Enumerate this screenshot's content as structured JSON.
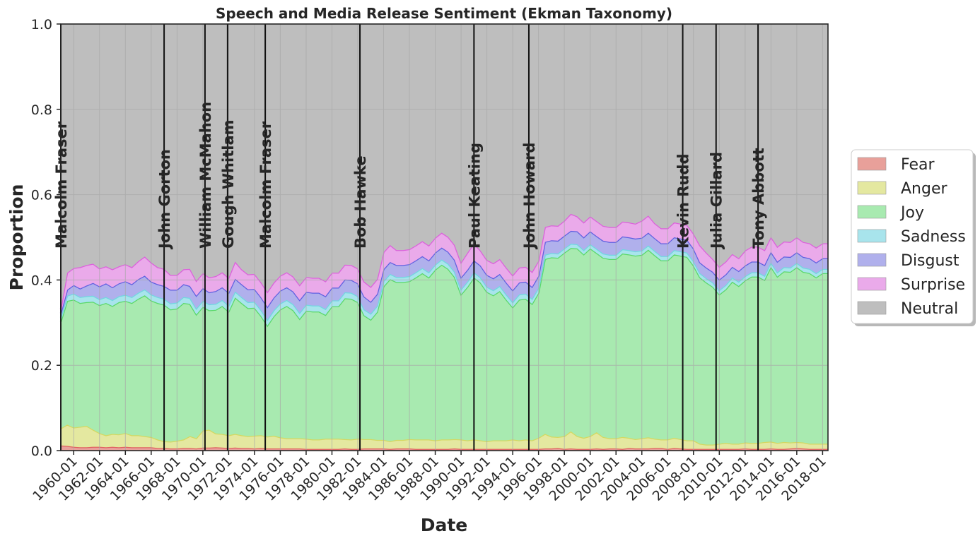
{
  "chart_data": {
    "type": "area",
    "title": "Speech and Media Release Sentiment (Ekman Taxonomy)",
    "xlabel": "Date",
    "ylabel": "Proportion",
    "xlim": [
      "1959-01",
      "2018-06"
    ],
    "ylim": [
      0,
      1
    ],
    "yticks": [
      "0.0",
      "0.2",
      "0.4",
      "0.6",
      "0.8",
      "1.0"
    ],
    "xticks": [
      "1960-01",
      "1962-01",
      "1964-01",
      "1966-01",
      "1968-01",
      "1970-01",
      "1972-01",
      "1974-01",
      "1976-01",
      "1978-01",
      "1980-01",
      "1982-01",
      "1984-01",
      "1986-01",
      "1988-01",
      "1990-01",
      "1992-01",
      "1994-01",
      "1996-01",
      "1998-01",
      "2000-01",
      "2002-01",
      "2004-01",
      "2006-01",
      "2008-01",
      "2010-01",
      "2012-01",
      "2014-01",
      "2016-01",
      "2018-01"
    ],
    "grid": true,
    "legend_position": "outside-right",
    "x": [
      "1959-01",
      "1959-07",
      "1960-01",
      "1960-07",
      "1961-01",
      "1961-07",
      "1962-01",
      "1962-07",
      "1963-01",
      "1963-07",
      "1964-01",
      "1964-07",
      "1965-01",
      "1965-07",
      "1966-01",
      "1966-07",
      "1967-01",
      "1967-07",
      "1968-01",
      "1968-07",
      "1969-01",
      "1969-07",
      "1970-01",
      "1970-07",
      "1971-01",
      "1971-07",
      "1972-01",
      "1972-07",
      "1973-01",
      "1973-07",
      "1974-01",
      "1974-07",
      "1975-01",
      "1975-07",
      "1976-01",
      "1976-07",
      "1977-01",
      "1977-07",
      "1978-01",
      "1978-07",
      "1979-01",
      "1979-07",
      "1980-01",
      "1980-07",
      "1981-01",
      "1981-07",
      "1982-01",
      "1982-07",
      "1983-01",
      "1983-07",
      "1984-01",
      "1984-07",
      "1985-01",
      "1985-07",
      "1986-01",
      "1986-07",
      "1987-01",
      "1987-07",
      "1988-01",
      "1988-07",
      "1989-01",
      "1989-07",
      "1990-01",
      "1990-07",
      "1991-01",
      "1991-07",
      "1992-01",
      "1992-07",
      "1993-01",
      "1993-07",
      "1994-01",
      "1994-07",
      "1995-01",
      "1995-07",
      "1996-01",
      "1996-07",
      "1997-01",
      "1997-07",
      "1998-01",
      "1998-07",
      "1999-01",
      "1999-07",
      "2000-01",
      "2000-07",
      "2001-01",
      "2001-07",
      "2002-01",
      "2002-07",
      "2003-01",
      "2003-07",
      "2004-01",
      "2004-07",
      "2005-01",
      "2005-07",
      "2006-01",
      "2006-07",
      "2007-01",
      "2007-07",
      "2008-01",
      "2008-07",
      "2009-01",
      "2009-07",
      "2010-01",
      "2010-07",
      "2011-01",
      "2011-07",
      "2012-01",
      "2012-07",
      "2013-01",
      "2013-07",
      "2014-01",
      "2014-07",
      "2015-01",
      "2015-07",
      "2016-01",
      "2016-07",
      "2017-01",
      "2017-07",
      "2018-01",
      "2018-06"
    ],
    "series": [
      {
        "name": "Fear",
        "color": "#e8a09a",
        "line": "#e06060",
        "values": [
          0.012,
          0.011,
          0.009,
          0.008,
          0.008,
          0.009,
          0.009,
          0.008,
          0.009,
          0.008,
          0.009,
          0.008,
          0.008,
          0.008,
          0.008,
          0.006,
          0.006,
          0.005,
          0.005,
          0.006,
          0.006,
          0.005,
          0.007,
          0.007,
          0.008,
          0.007,
          0.006,
          0.007,
          0.006,
          0.006,
          0.005,
          0.006,
          0.005,
          0.005,
          0.005,
          0.005,
          0.005,
          0.005,
          0.004,
          0.004,
          0.004,
          0.004,
          0.004,
          0.004,
          0.005,
          0.004,
          0.004,
          0.005,
          0.005,
          0.005,
          0.005,
          0.004,
          0.005,
          0.005,
          0.005,
          0.004,
          0.004,
          0.004,
          0.004,
          0.004,
          0.004,
          0.005,
          0.004,
          0.004,
          0.004,
          0.004,
          0.004,
          0.004,
          0.004,
          0.004,
          0.004,
          0.004,
          0.004,
          0.004,
          0.004,
          0.005,
          0.005,
          0.006,
          0.004,
          0.005,
          0.004,
          0.004,
          0.004,
          0.005,
          0.004,
          0.005,
          0.005,
          0.004,
          0.006,
          0.005,
          0.005,
          0.005,
          0.006,
          0.006,
          0.004,
          0.006,
          0.005,
          0.004,
          0.004,
          0.004,
          0.004,
          0.004,
          0.004,
          0.004,
          0.004,
          0.004,
          0.005,
          0.004,
          0.004,
          0.004,
          0.005,
          0.004,
          0.004,
          0.005,
          0.006,
          0.005,
          0.004,
          0.004,
          0.004,
          0.004
        ]
      },
      {
        "name": "Anger",
        "color": "#e4e8a0",
        "line": "#d4d860",
        "values": [
          0.04,
          0.05,
          0.045,
          0.048,
          0.05,
          0.04,
          0.032,
          0.028,
          0.03,
          0.03,
          0.032,
          0.028,
          0.028,
          0.026,
          0.024,
          0.02,
          0.016,
          0.016,
          0.018,
          0.02,
          0.028,
          0.024,
          0.04,
          0.042,
          0.032,
          0.032,
          0.03,
          0.032,
          0.03,
          0.028,
          0.03,
          0.03,
          0.028,
          0.03,
          0.026,
          0.024,
          0.024,
          0.024,
          0.024,
          0.022,
          0.022,
          0.024,
          0.024,
          0.024,
          0.022,
          0.022,
          0.024,
          0.022,
          0.022,
          0.02,
          0.02,
          0.018,
          0.02,
          0.02,
          0.022,
          0.022,
          0.022,
          0.022,
          0.02,
          0.022,
          0.022,
          0.022,
          0.022,
          0.02,
          0.022,
          0.02,
          0.018,
          0.02,
          0.02,
          0.02,
          0.022,
          0.02,
          0.022,
          0.02,
          0.026,
          0.034,
          0.028,
          0.026,
          0.03,
          0.04,
          0.03,
          0.026,
          0.03,
          0.038,
          0.028,
          0.024,
          0.024,
          0.028,
          0.024,
          0.022,
          0.024,
          0.026,
          0.022,
          0.02,
          0.022,
          0.024,
          0.022,
          0.02,
          0.02,
          0.012,
          0.01,
          0.01,
          0.012,
          0.014,
          0.012,
          0.012,
          0.014,
          0.014,
          0.014,
          0.016,
          0.016,
          0.014,
          0.016,
          0.014,
          0.014,
          0.014,
          0.012,
          0.012,
          0.012,
          0.012
        ]
      },
      {
        "name": "Joy",
        "color": "#a8eab0",
        "line": "#5ad86a",
        "values": [
          0.25,
          0.29,
          0.3,
          0.29,
          0.29,
          0.3,
          0.3,
          0.31,
          0.3,
          0.31,
          0.31,
          0.31,
          0.32,
          0.33,
          0.32,
          0.32,
          0.32,
          0.31,
          0.31,
          0.32,
          0.31,
          0.29,
          0.29,
          0.28,
          0.29,
          0.3,
          0.29,
          0.32,
          0.31,
          0.3,
          0.3,
          0.28,
          0.26,
          0.28,
          0.3,
          0.31,
          0.3,
          0.28,
          0.3,
          0.3,
          0.3,
          0.29,
          0.31,
          0.31,
          0.33,
          0.33,
          0.32,
          0.29,
          0.28,
          0.3,
          0.36,
          0.38,
          0.37,
          0.37,
          0.37,
          0.38,
          0.39,
          0.38,
          0.4,
          0.41,
          0.4,
          0.38,
          0.34,
          0.36,
          0.38,
          0.37,
          0.35,
          0.34,
          0.35,
          0.33,
          0.31,
          0.33,
          0.33,
          0.32,
          0.34,
          0.41,
          0.42,
          0.42,
          0.43,
          0.43,
          0.44,
          0.43,
          0.44,
          0.42,
          0.42,
          0.42,
          0.42,
          0.43,
          0.43,
          0.43,
          0.43,
          0.44,
          0.43,
          0.42,
          0.42,
          0.43,
          0.43,
          0.43,
          0.41,
          0.39,
          0.38,
          0.37,
          0.35,
          0.36,
          0.38,
          0.37,
          0.38,
          0.39,
          0.39,
          0.38,
          0.41,
          0.39,
          0.4,
          0.4,
          0.41,
          0.4,
          0.4,
          0.39,
          0.4,
          0.4
        ]
      },
      {
        "name": "Sadness",
        "color": "#a8e4ec",
        "line": "#70d8e0",
        "values": [
          0.01,
          0.012,
          0.014,
          0.014,
          0.014,
          0.014,
          0.014,
          0.014,
          0.014,
          0.014,
          0.014,
          0.014,
          0.014,
          0.014,
          0.014,
          0.014,
          0.014,
          0.014,
          0.014,
          0.014,
          0.014,
          0.014,
          0.014,
          0.014,
          0.014,
          0.014,
          0.014,
          0.014,
          0.014,
          0.014,
          0.014,
          0.014,
          0.014,
          0.014,
          0.014,
          0.014,
          0.014,
          0.014,
          0.014,
          0.014,
          0.014,
          0.014,
          0.014,
          0.014,
          0.014,
          0.014,
          0.014,
          0.014,
          0.014,
          0.014,
          0.012,
          0.012,
          0.012,
          0.012,
          0.012,
          0.012,
          0.012,
          0.012,
          0.012,
          0.012,
          0.012,
          0.012,
          0.012,
          0.012,
          0.012,
          0.012,
          0.012,
          0.012,
          0.012,
          0.012,
          0.012,
          0.012,
          0.012,
          0.012,
          0.012,
          0.01,
          0.01,
          0.01,
          0.01,
          0.01,
          0.01,
          0.01,
          0.01,
          0.01,
          0.01,
          0.01,
          0.01,
          0.01,
          0.01,
          0.01,
          0.01,
          0.01,
          0.01,
          0.01,
          0.01,
          0.01,
          0.01,
          0.01,
          0.01,
          0.01,
          0.01,
          0.01,
          0.01,
          0.01,
          0.01,
          0.01,
          0.01,
          0.01,
          0.01,
          0.01,
          0.01,
          0.01,
          0.01,
          0.01,
          0.01,
          0.01,
          0.01,
          0.01,
          0.01,
          0.01
        ]
      },
      {
        "name": "Disgust",
        "color": "#b0b0ec",
        "line": "#6060e0",
        "values": [
          0.01,
          0.014,
          0.02,
          0.02,
          0.025,
          0.03,
          0.03,
          0.032,
          0.03,
          0.03,
          0.032,
          0.03,
          0.032,
          0.032,
          0.03,
          0.03,
          0.03,
          0.032,
          0.03,
          0.03,
          0.028,
          0.03,
          0.03,
          0.028,
          0.03,
          0.03,
          0.03,
          0.03,
          0.03,
          0.03,
          0.03,
          0.03,
          0.03,
          0.03,
          0.03,
          0.03,
          0.03,
          0.03,
          0.03,
          0.03,
          0.03,
          0.03,
          0.03,
          0.03,
          0.03,
          0.03,
          0.03,
          0.03,
          0.028,
          0.028,
          0.028,
          0.028,
          0.028,
          0.028,
          0.028,
          0.028,
          0.028,
          0.028,
          0.028,
          0.028,
          0.028,
          0.028,
          0.028,
          0.028,
          0.028,
          0.028,
          0.028,
          0.028,
          0.028,
          0.028,
          0.028,
          0.028,
          0.028,
          0.028,
          0.028,
          0.03,
          0.03,
          0.03,
          0.03,
          0.03,
          0.03,
          0.03,
          0.03,
          0.03,
          0.03,
          0.03,
          0.03,
          0.03,
          0.03,
          0.03,
          0.03,
          0.03,
          0.03,
          0.03,
          0.03,
          0.03,
          0.03,
          0.03,
          0.03,
          0.025,
          0.025,
          0.025,
          0.025,
          0.025,
          0.025,
          0.025,
          0.025,
          0.025,
          0.025,
          0.025,
          0.025,
          0.025,
          0.025,
          0.025,
          0.025,
          0.025,
          0.025,
          0.025,
          0.025,
          0.025
        ]
      },
      {
        "name": "Surprise",
        "color": "#eaaaea",
        "line": "#dc60dc",
        "values": [
          0.01,
          0.04,
          0.04,
          0.05,
          0.048,
          0.045,
          0.042,
          0.04,
          0.042,
          0.04,
          0.04,
          0.04,
          0.042,
          0.045,
          0.045,
          0.04,
          0.04,
          0.035,
          0.035,
          0.035,
          0.04,
          0.035,
          0.035,
          0.035,
          0.035,
          0.035,
          0.035,
          0.04,
          0.035,
          0.035,
          0.035,
          0.035,
          0.035,
          0.035,
          0.035,
          0.035,
          0.035,
          0.035,
          0.035,
          0.035,
          0.035,
          0.035,
          0.035,
          0.035,
          0.035,
          0.035,
          0.035,
          0.035,
          0.035,
          0.035,
          0.04,
          0.04,
          0.035,
          0.035,
          0.035,
          0.035,
          0.035,
          0.035,
          0.035,
          0.035,
          0.035,
          0.035,
          0.035,
          0.04,
          0.04,
          0.035,
          0.035,
          0.035,
          0.035,
          0.035,
          0.035,
          0.035,
          0.035,
          0.035,
          0.035,
          0.035,
          0.035,
          0.035,
          0.035,
          0.04,
          0.035,
          0.035,
          0.035,
          0.035,
          0.035,
          0.035,
          0.035,
          0.035,
          0.035,
          0.035,
          0.04,
          0.04,
          0.035,
          0.035,
          0.035,
          0.035,
          0.035,
          0.035,
          0.035,
          0.04,
          0.035,
          0.03,
          0.03,
          0.03,
          0.03,
          0.03,
          0.035,
          0.035,
          0.035,
          0.035,
          0.035,
          0.035,
          0.035,
          0.035,
          0.035,
          0.035,
          0.035,
          0.035,
          0.035,
          0.035
        ]
      },
      {
        "name": "Neutral",
        "color": "#bebebe",
        "line": "#bebebe",
        "values": "remainder to 1.0"
      }
    ],
    "annotations": [
      {
        "label": "Malcolm Fraser",
        "date": "1959-01"
      },
      {
        "label": "John Gorton",
        "date": "1967-01"
      },
      {
        "label": "William McMahon",
        "date": "1970-03"
      },
      {
        "label": "Gough Whitlam",
        "date": "1971-12"
      },
      {
        "label": "Malcolm Fraser",
        "date": "1974-11"
      },
      {
        "label": "Bob Hawke",
        "date": "1982-03"
      },
      {
        "label": "Paul Keating",
        "date": "1991-01"
      },
      {
        "label": "John Howard",
        "date": "1995-04"
      },
      {
        "label": "Kevin Rudd",
        "date": "2007-03"
      },
      {
        "label": "Julia Gillard",
        "date": "2009-10"
      },
      {
        "label": "Tony Abbott",
        "date": "2013-01"
      }
    ]
  },
  "legend": {
    "items": [
      {
        "label": "Fear",
        "color": "#e8a09a"
      },
      {
        "label": "Anger",
        "color": "#e4e8a0"
      },
      {
        "label": "Joy",
        "color": "#a8eab0"
      },
      {
        "label": "Sadness",
        "color": "#a8e4ec"
      },
      {
        "label": "Disgust",
        "color": "#b0b0ec"
      },
      {
        "label": "Surprise",
        "color": "#eaaaea"
      },
      {
        "label": "Neutral",
        "color": "#bebebe"
      }
    ]
  }
}
